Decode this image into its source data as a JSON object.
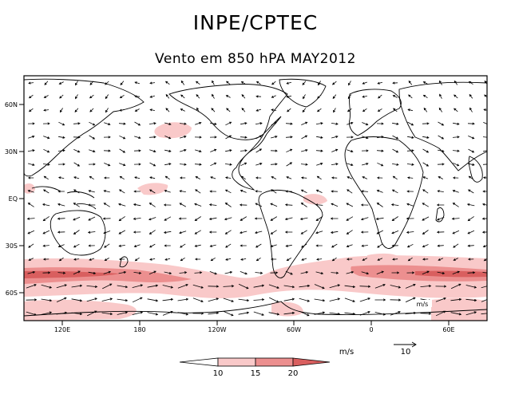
{
  "header": {
    "title": "INPE/CPTEC",
    "subtitle": "Vento em 850 hPA MAY2012"
  },
  "map": {
    "lat_labels": [
      "60N",
      "30N",
      "EQ",
      "30S",
      "60S"
    ],
    "lon_labels": [
      "120E",
      "180",
      "120W",
      "60W",
      "0",
      "60E"
    ],
    "inset_unit_label": "m/s",
    "shade_colors": [
      "#ffffff",
      "#f9c9c9",
      "#ec8f8f",
      "#d95f5f"
    ]
  },
  "legend": {
    "unit": "m/s",
    "reference_vector": "10",
    "ticks": [
      "10",
      "15",
      "20"
    ],
    "colors": [
      "#ffffff",
      "#f9c9c9",
      "#ec8f8f",
      "#d95f5f"
    ]
  }
}
